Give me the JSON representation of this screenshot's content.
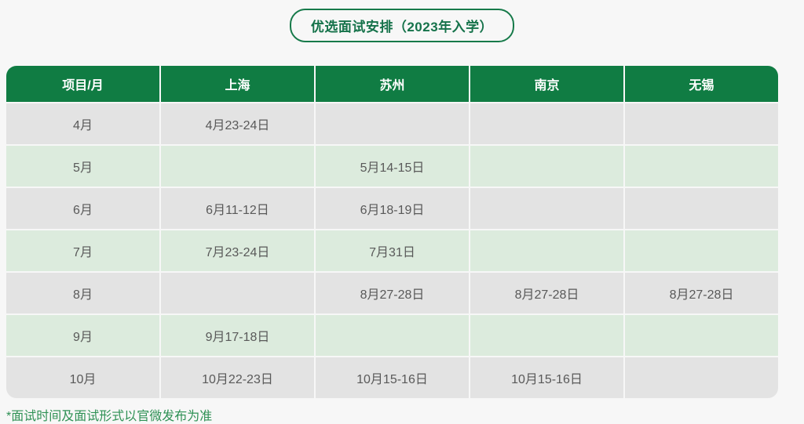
{
  "header": {
    "title": "优选面试安排（2023年入学）"
  },
  "table": {
    "headers": [
      "项目/月",
      "上海",
      "苏州",
      "南京",
      "无锡"
    ],
    "rows": [
      [
        "4月",
        "4月23-24日",
        "",
        "",
        ""
      ],
      [
        "5月",
        "",
        "5月14-15日",
        "",
        ""
      ],
      [
        "6月",
        "6月11-12日",
        "6月18-19日",
        "",
        ""
      ],
      [
        "7月",
        "7月23-24日",
        "7月31日",
        "",
        ""
      ],
      [
        "8月",
        "",
        "8月27-28日",
        "8月27-28日",
        "8月27-28日"
      ],
      [
        "9月",
        "9月17-18日",
        "",
        "",
        ""
      ],
      [
        "10月",
        "10月22-23日",
        "10月15-16日",
        "10月15-16日",
        ""
      ]
    ]
  },
  "footer": {
    "note": "*面试时间及面试形式以官微发布为准"
  },
  "colors": {
    "page_background": "#f7f7f7",
    "header_background": "#107c43",
    "title_green": "#15724a",
    "row_gray": "#e3e3e3",
    "row_light_green": "#dcebdd",
    "cell_text": "#595959",
    "footnote_green": "#2f9155"
  }
}
